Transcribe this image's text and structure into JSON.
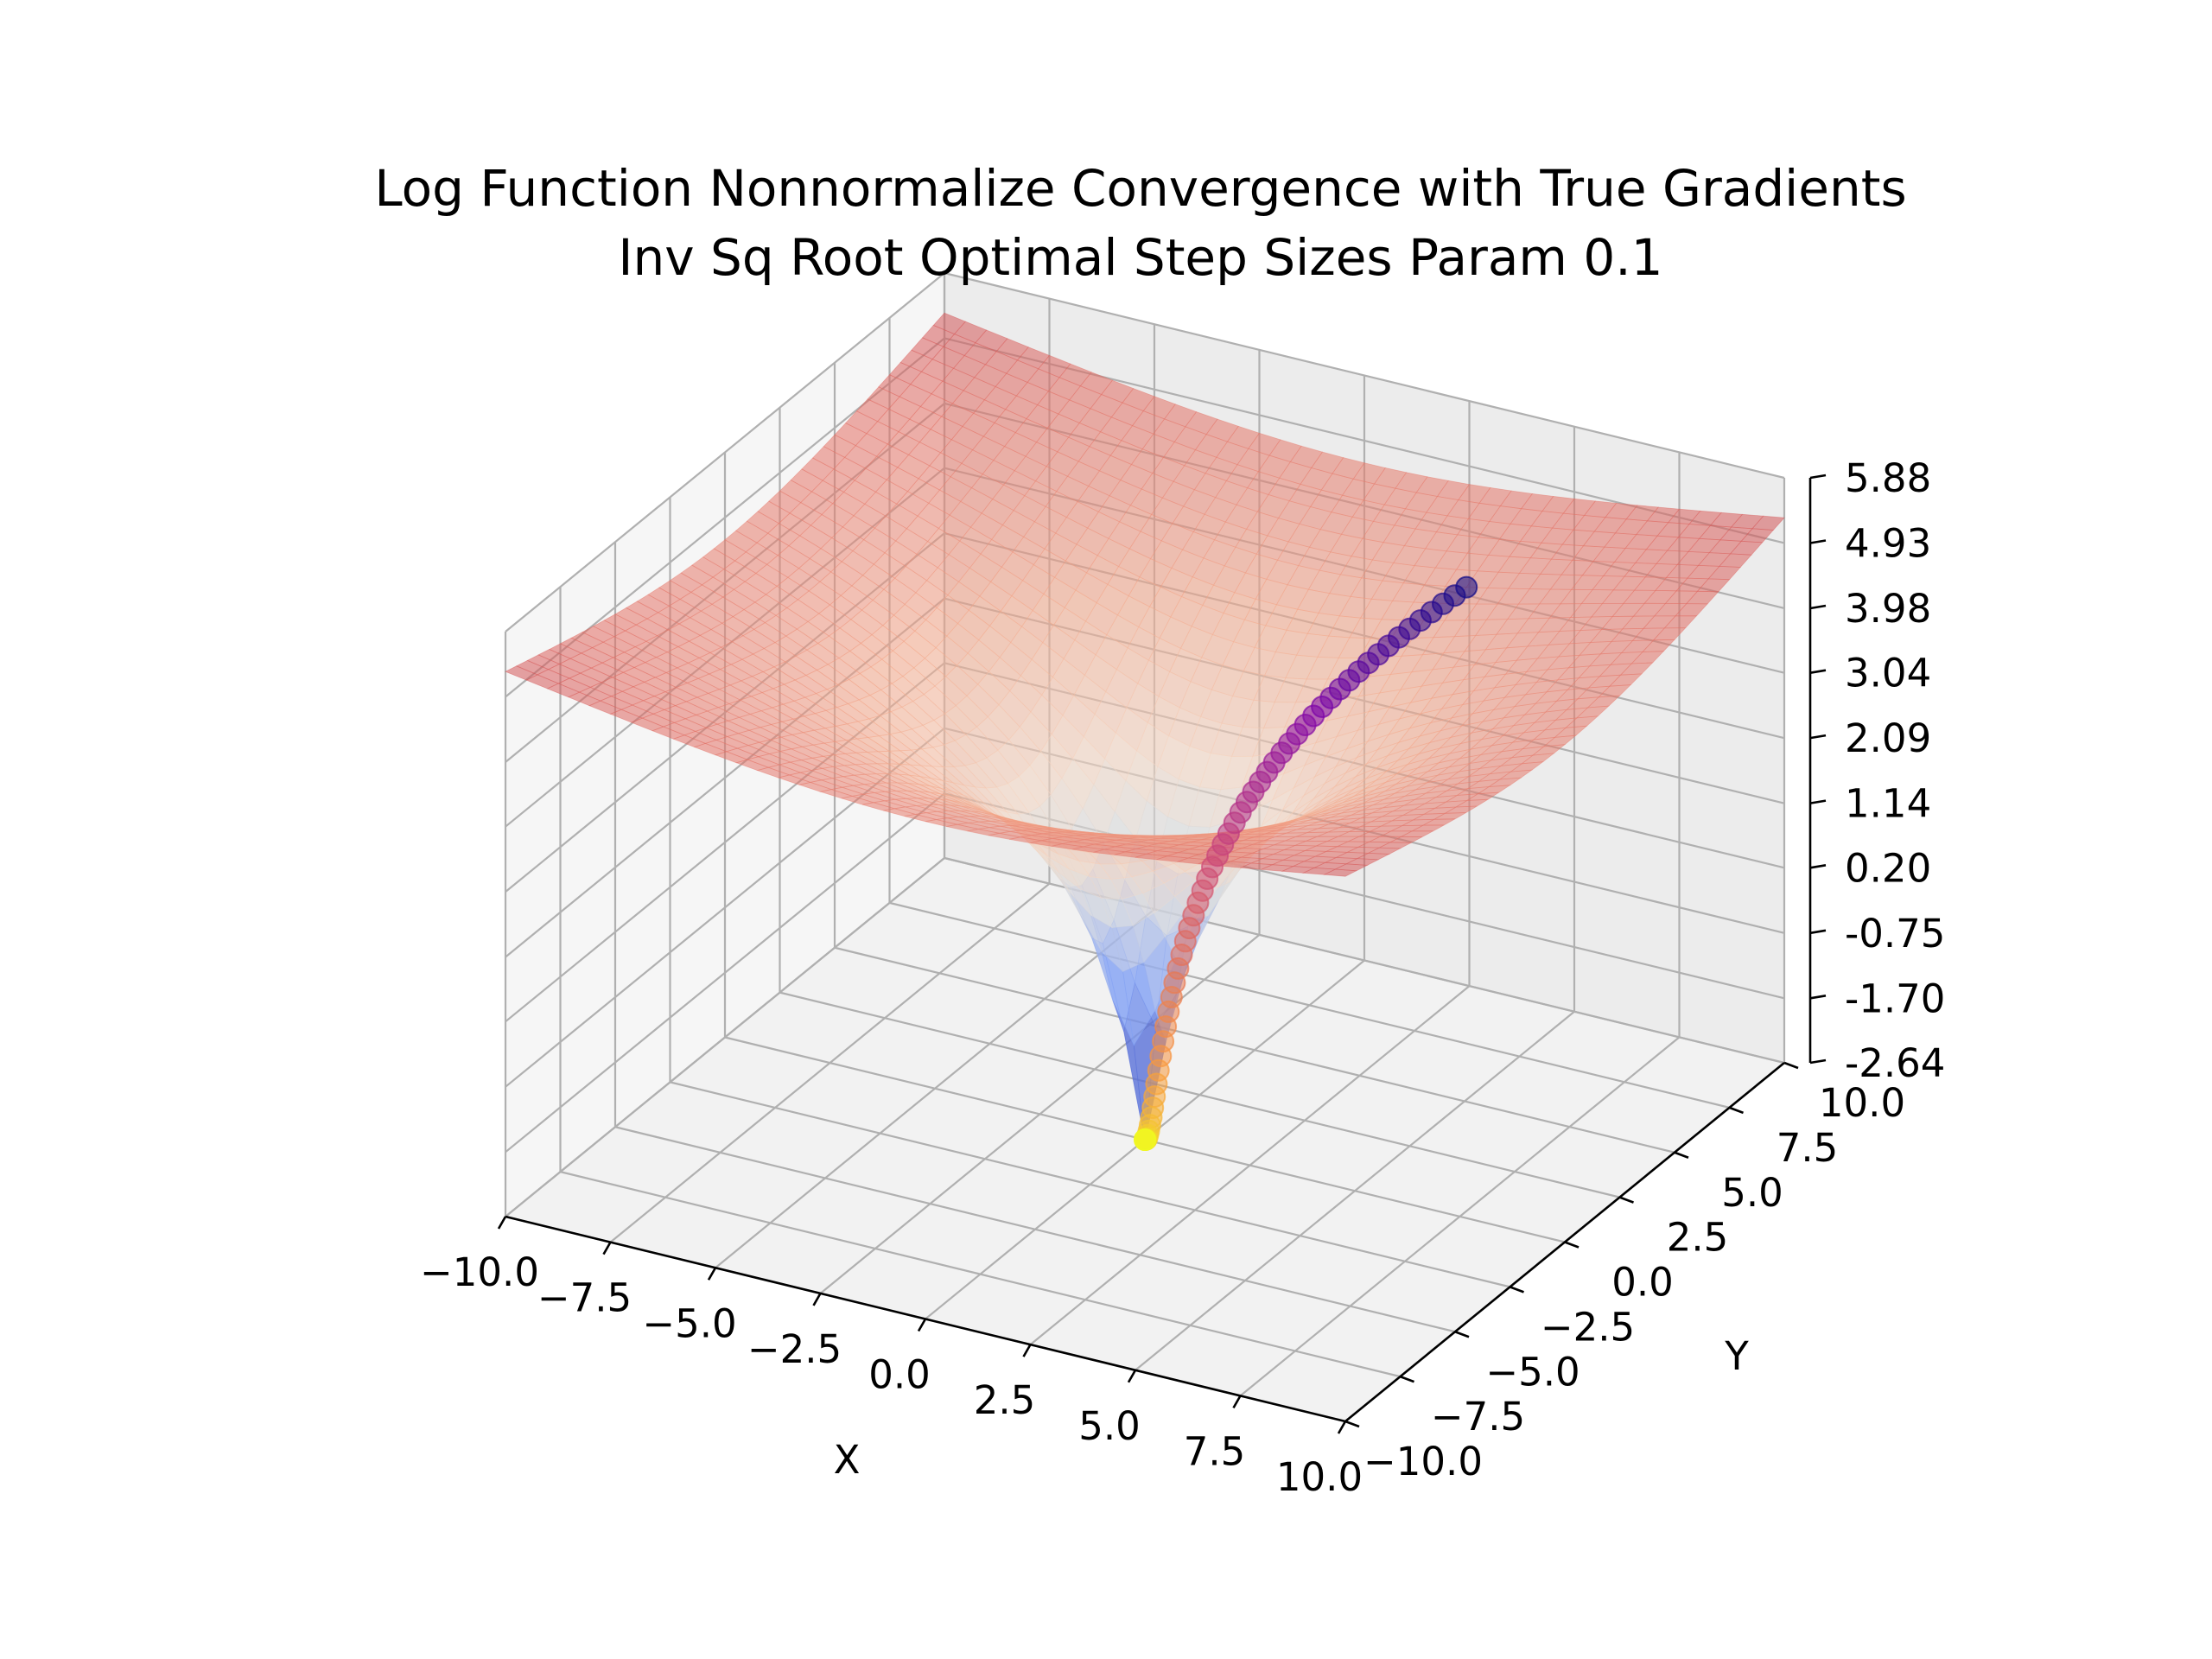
{
  "chart_data": {
    "type": "surface3d",
    "title": "Log Function Nonnormalize Convergence with True Gradients",
    "subtitle": "Inv Sq Root Optimal Step Sizes Param 0.1",
    "xlabel": "X",
    "ylabel": "Y",
    "zlabel": "",
    "xlim": [
      -10,
      10
    ],
    "ylim": [
      -10,
      10
    ],
    "zlim": [
      -2.64,
      5.88
    ],
    "x_ticks": [
      "−10.0",
      "−7.5",
      "−5.0",
      "−2.5",
      "0.0",
      "2.5",
      "5.0",
      "7.5",
      "10.0"
    ],
    "x_tick_values": [
      -10,
      -7.5,
      -5,
      -2.5,
      0,
      2.5,
      5,
      7.5,
      10
    ],
    "y_ticks": [
      "−10.0",
      "−7.5",
      "−5.0",
      "−2.5",
      "0.0",
      "2.5",
      "5.0",
      "7.5",
      "10.0"
    ],
    "y_tick_values": [
      -10,
      -7.5,
      -5,
      -2.5,
      0,
      2.5,
      5,
      7.5,
      10
    ],
    "z_ticks": [
      "-2.64",
      "-1.70",
      "-0.75",
      "0.20",
      "1.14",
      "2.09",
      "3.04",
      "3.98",
      "4.93",
      "5.88"
    ],
    "z_tick_values": [
      -2.64,
      -1.7,
      -0.75,
      0.2,
      1.14,
      2.09,
      3.04,
      3.98,
      4.93,
      5.88
    ],
    "grid": true,
    "colormap": "coolwarm",
    "surface_function": "log(x^2 + y^2)",
    "trajectory": {
      "start": [
        4.0,
        7.0
      ],
      "end": [
        0.0,
        0.0
      ],
      "points": 60,
      "colormap": "plasma"
    },
    "colors": {
      "pane": "#f2f2f2",
      "grid": "#b0b0b0",
      "surface_low": "#3b4cc0",
      "surface_mid": "#f5f0ec",
      "surface_high": "#c03040"
    }
  }
}
